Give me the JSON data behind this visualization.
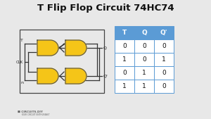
{
  "title": "T Flip Flop Circuit 74HC74",
  "background_color": "#e8e8e8",
  "title_fontsize": 9.5,
  "title_fontweight": "bold",
  "table_headers": [
    "T",
    "Q",
    "Q'"
  ],
  "table_data": [
    [
      "0",
      "0",
      "0"
    ],
    [
      "1",
      "0",
      "1"
    ],
    [
      "0",
      "1",
      "0"
    ],
    [
      "1",
      "1",
      "0"
    ]
  ],
  "table_header_bg": "#5b9bd5",
  "table_header_color": "#ffffff",
  "table_row_bg": "#ffffff",
  "table_border_color": "#5b9bd5",
  "gate_color": "#f5c518",
  "gate_outline": "#555555",
  "wire_color": "#333333",
  "clk_label": "CLK",
  "t_label": "T",
  "n_label": "n",
  "q_label": "Q",
  "qn_label": "Q'",
  "logo_text": "CIRCUITS.DIY",
  "logo_sub": "YOUR CIRCUIT ENTHUSIAST",
  "logo_color": "#666666"
}
